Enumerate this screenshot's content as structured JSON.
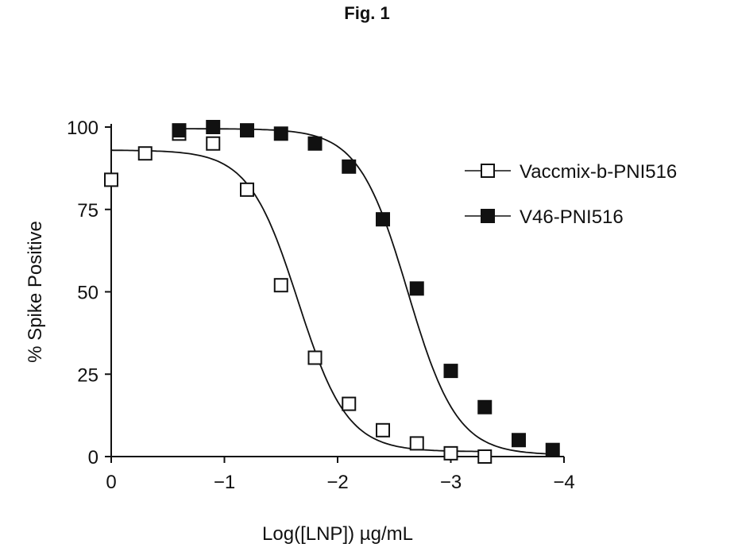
{
  "figure_title": "Fig. 1",
  "chart_data": {
    "type": "scatter",
    "xlabel": "Log([LNP]) µg/mL",
    "ylabel": "% Spike Positive",
    "xlim": [
      0,
      -4
    ],
    "ylim": [
      0,
      100
    ],
    "x_ticks": [
      0,
      -1,
      -2,
      -3,
      -4
    ],
    "x_tick_labels": [
      "0",
      "−1",
      "−2",
      "−3",
      "−4"
    ],
    "y_ticks": [
      0,
      25,
      50,
      75,
      100
    ],
    "y_tick_labels": [
      "0",
      "25",
      "50",
      "75",
      "100"
    ],
    "grid": false,
    "legend_position": "right",
    "series": [
      {
        "name": "Vaccmix-b-PNI516",
        "marker": "open-square",
        "color": "#111111",
        "x": [
          0,
          -0.3,
          -0.6,
          -0.9,
          -1.2,
          -1.5,
          -1.8,
          -2.1,
          -2.4,
          -2.7,
          -3.0,
          -3.3
        ],
        "y": [
          84,
          92,
          98,
          95,
          81,
          52,
          30,
          16,
          8,
          4,
          1,
          0
        ],
        "fit": {
          "top": 93,
          "bottom": 1.5,
          "logIC50": -1.65,
          "hill": 2.0
        }
      },
      {
        "name": "V46-PNI516",
        "marker": "filled-square",
        "color": "#111111",
        "x": [
          -0.6,
          -0.9,
          -1.2,
          -1.5,
          -1.8,
          -2.1,
          -2.4,
          -2.7,
          -3.0,
          -3.3,
          -3.6,
          -3.9
        ],
        "y": [
          99,
          100,
          99,
          98,
          95,
          88,
          72,
          51,
          26,
          15,
          5,
          2
        ],
        "fit": {
          "top": 99.5,
          "bottom": 0.5,
          "logIC50": -2.62,
          "hill": 2.0
        }
      }
    ]
  }
}
